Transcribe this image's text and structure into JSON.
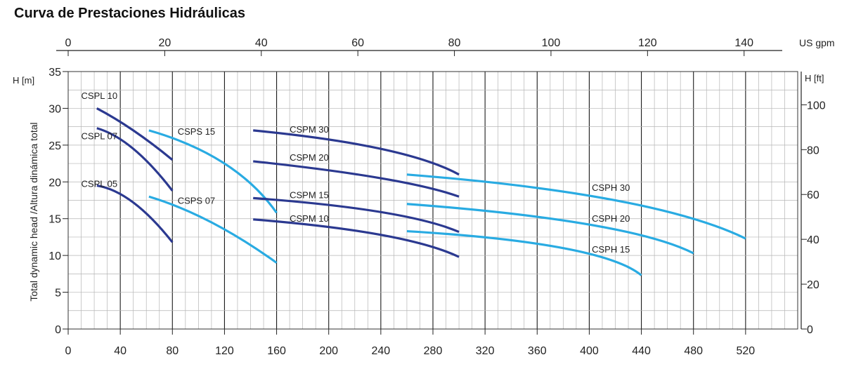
{
  "title": "Curva de Prestaciones Hidráulicas",
  "chart_data": {
    "type": "line",
    "title": "Curva de Prestaciones Hidráulicas",
    "ylabel": "Total dynamic head /Altura dinámica total",
    "x_axis": {
      "unit": "",
      "lim": [
        0,
        560
      ],
      "major_ticks": [
        0,
        40,
        80,
        120,
        160,
        200,
        240,
        280,
        320,
        360,
        400,
        440,
        480,
        520
      ],
      "minor_step": 10
    },
    "y_axis": {
      "unit": "H [m]",
      "lim": [
        0,
        35
      ],
      "ticks": [
        0,
        5,
        10,
        15,
        20,
        25,
        30,
        35
      ],
      "minor_step": 2.5
    },
    "top_axis": {
      "unit": "US gpm",
      "lim": [
        0,
        147.9
      ],
      "ticks": [
        0,
        20,
        40,
        60,
        80,
        100,
        120,
        140
      ]
    },
    "right_axis": {
      "unit": "H [ft]",
      "ticks": [
        0,
        20,
        40,
        60,
        80,
        100
      ]
    },
    "grid": true,
    "series": [
      {
        "name": "CSPL 10",
        "color": "#2b3990",
        "label_at": [
          10,
          31.3
        ],
        "points": [
          [
            22,
            30.0
          ],
          [
            50,
            27.0
          ],
          [
            80,
            23.0
          ]
        ]
      },
      {
        "name": "CSPL 07",
        "color": "#2b3990",
        "label_at": [
          10,
          25.8
        ],
        "points": [
          [
            22,
            27.3
          ],
          [
            50,
            24.5
          ],
          [
            80,
            18.8
          ]
        ]
      },
      {
        "name": "CSPL 05",
        "color": "#2b3990",
        "label_at": [
          10,
          19.3
        ],
        "points": [
          [
            22,
            19.5
          ],
          [
            50,
            17.2
          ],
          [
            80,
            11.8
          ]
        ]
      },
      {
        "name": "CSPS 15",
        "color": "#29abe2",
        "label_at": [
          84,
          26.4
        ],
        "points": [
          [
            62,
            27.0
          ],
          [
            120,
            22.5
          ],
          [
            160,
            15.8
          ]
        ]
      },
      {
        "name": "CSPS 07",
        "color": "#29abe2",
        "label_at": [
          84,
          17.0
        ],
        "points": [
          [
            62,
            18.0
          ],
          [
            110,
            14.5
          ],
          [
            160,
            9.0
          ]
        ]
      },
      {
        "name": "CSPM 30",
        "color": "#2b3990",
        "label_at": [
          170,
          26.7
        ],
        "points": [
          [
            142,
            27.0
          ],
          [
            240,
            24.5
          ],
          [
            300,
            21.0
          ]
        ]
      },
      {
        "name": "CSPM 20",
        "color": "#2b3990",
        "label_at": [
          170,
          22.9
        ],
        "points": [
          [
            142,
            22.8
          ],
          [
            240,
            20.5
          ],
          [
            300,
            18.0
          ]
        ]
      },
      {
        "name": "CSPM 15",
        "color": "#2b3990",
        "label_at": [
          170,
          17.8
        ],
        "points": [
          [
            142,
            17.8
          ],
          [
            240,
            15.9
          ],
          [
            300,
            13.2
          ]
        ]
      },
      {
        "name": "CSPM 10",
        "color": "#2b3990",
        "label_at": [
          170,
          14.6
        ],
        "points": [
          [
            142,
            14.9
          ],
          [
            240,
            12.8
          ],
          [
            300,
            9.8
          ]
        ]
      },
      {
        "name": "CSPH 30",
        "color": "#29abe2",
        "label_at": [
          402,
          18.8
        ],
        "points": [
          [
            260,
            21.0
          ],
          [
            420,
            17.5
          ],
          [
            520,
            12.3
          ]
        ]
      },
      {
        "name": "CSPH 20",
        "color": "#29abe2",
        "label_at": [
          402,
          14.6
        ],
        "points": [
          [
            260,
            17.0
          ],
          [
            400,
            14.2
          ],
          [
            480,
            10.3
          ]
        ]
      },
      {
        "name": "CSPH 15",
        "color": "#29abe2",
        "label_at": [
          402,
          10.4
        ],
        "points": [
          [
            260,
            13.3
          ],
          [
            380,
            11.0
          ],
          [
            440,
            7.3
          ]
        ]
      }
    ]
  }
}
